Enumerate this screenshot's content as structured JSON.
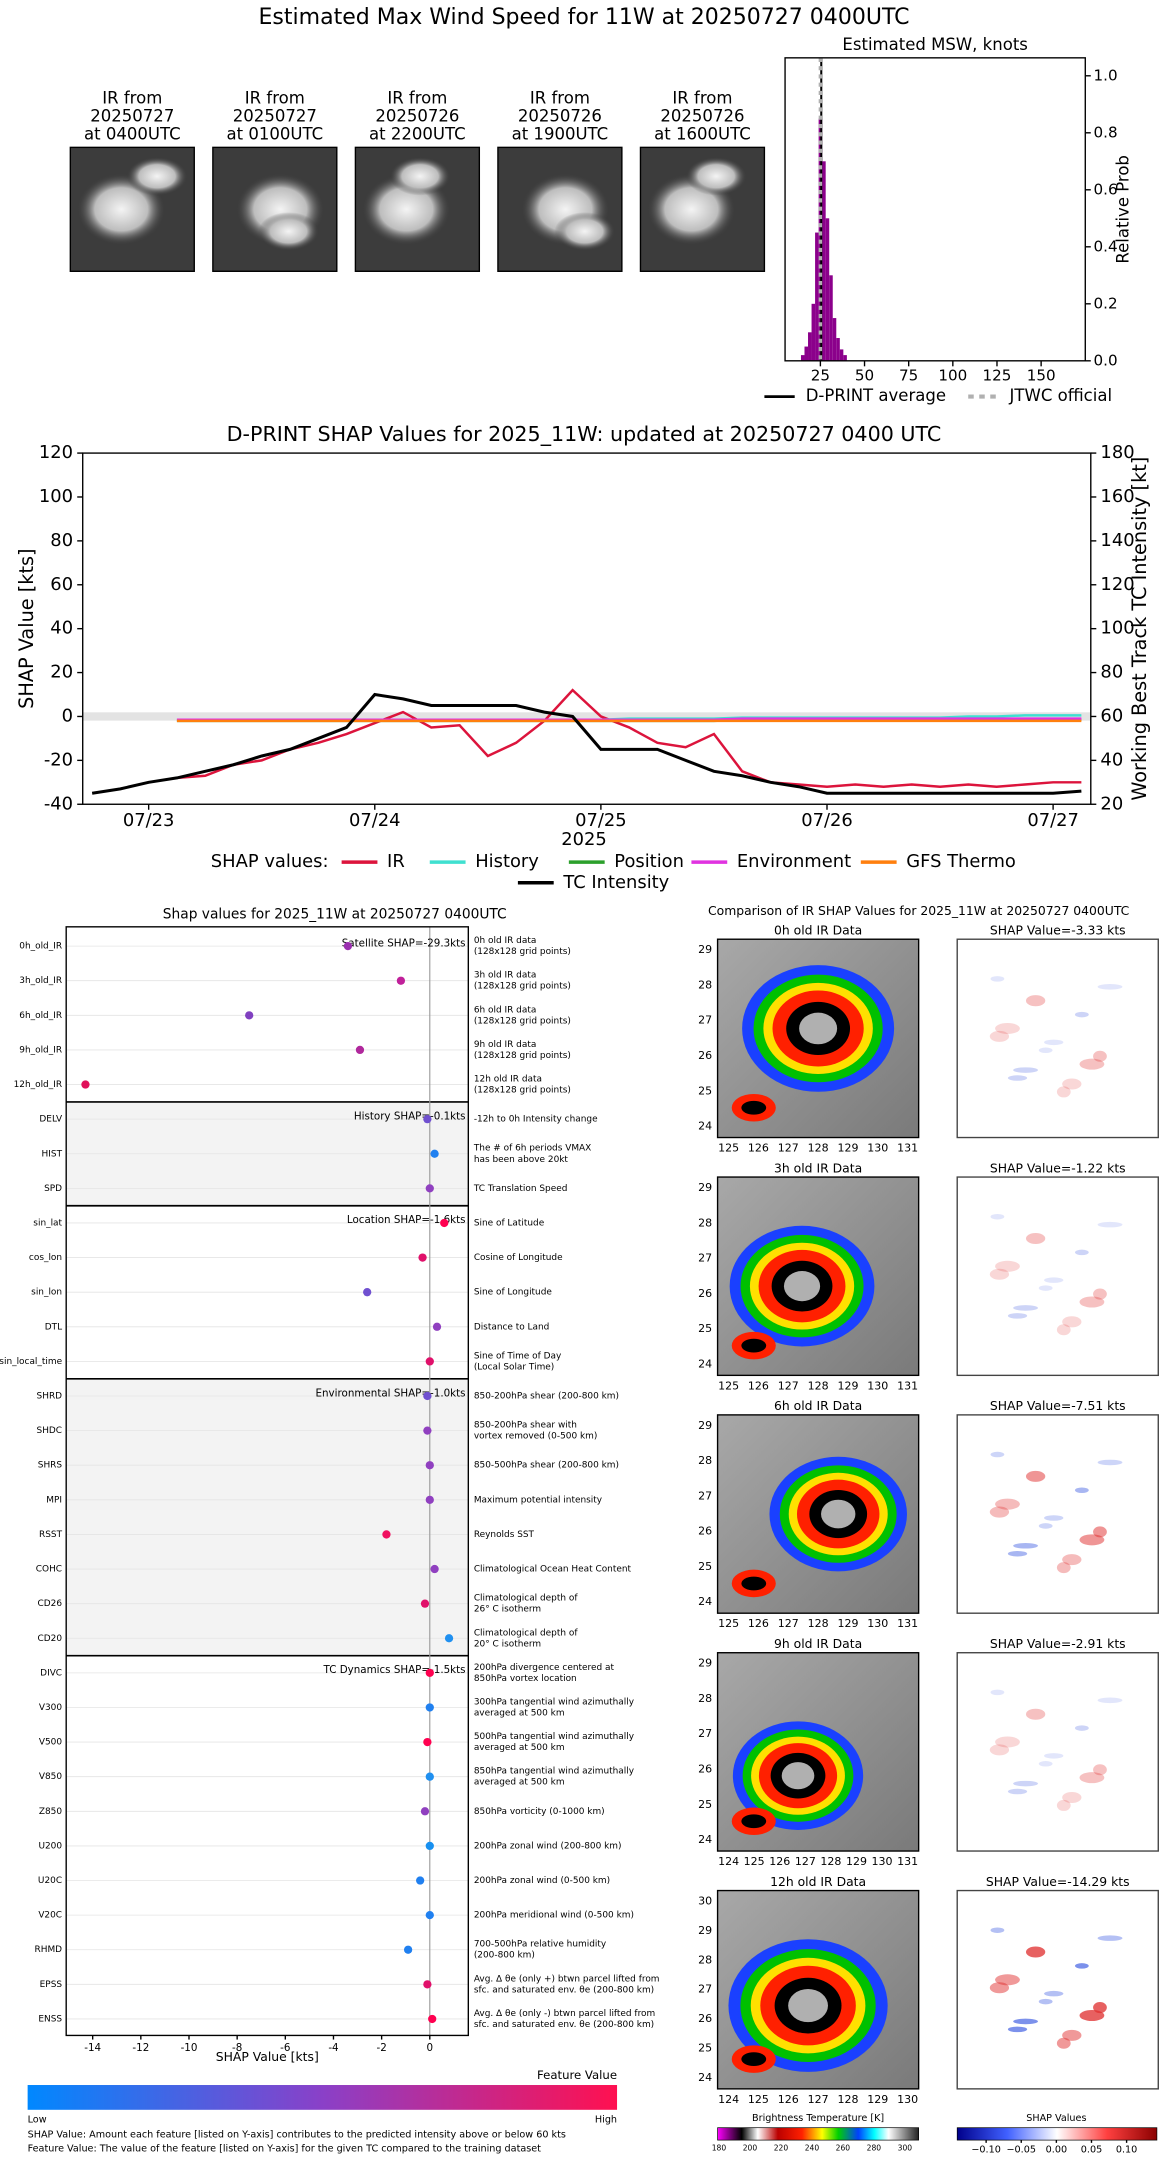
{
  "title": "Estimated Max Wind Speed for 11W at 20250727 0400UTC",
  "ir_panels": [
    {
      "lines": [
        "IR from",
        "20250727",
        "at 0400UTC"
      ]
    },
    {
      "lines": [
        "IR from",
        "20250727",
        "at 0100UTC"
      ]
    },
    {
      "lines": [
        "IR from",
        "20250726",
        "at 2200UTC"
      ]
    },
    {
      "lines": [
        "IR from",
        "20250726",
        "at 1900UTC"
      ]
    },
    {
      "lines": [
        "IR from",
        "20250726",
        "at 1600UTC"
      ]
    }
  ],
  "chart_data": [
    {
      "type": "histogram",
      "title": "Estimated MSW, knots",
      "ylabel": "Relative Prob",
      "bins": [
        14,
        16,
        18,
        20,
        22,
        24,
        26,
        28,
        30,
        32,
        34,
        36,
        38,
        40
      ],
      "values": [
        0.02,
        0.05,
        0.1,
        0.2,
        0.45,
        0.85,
        0.7,
        0.5,
        0.3,
        0.15,
        0.08,
        0.04,
        0.02
      ],
      "color": "#8b008b",
      "xlim": [
        5,
        175
      ],
      "xticks": [
        25,
        50,
        75,
        100,
        125,
        150
      ],
      "ylim": [
        0,
        1.063
      ],
      "yticks": [
        {
          "value": 0,
          "label": "0.0"
        },
        0.2,
        0.4,
        0.6,
        0.8,
        {
          "value": 1,
          "label": "1.0"
        }
      ],
      "lines": [
        {
          "name": "D-PRINT average",
          "color": "#000000",
          "value": 25.5,
          "dashed": false
        },
        {
          "name": "JTWC official",
          "color": "#b0b0b0",
          "value": 25,
          "dashed": true
        }
      ]
    },
    {
      "type": "line",
      "title": "D-PRINT SHAP Values for 2025_11W: updated at 20250727 0400 UTC",
      "xlabel": "2025",
      "ylabel": "SHAP Value [kts]",
      "y2label": "Working Best Track TC Intensity [kt]",
      "legend_title": "SHAP values:",
      "x": [
        "2025-07-22T18:00",
        "2025-07-22T21:00",
        "2025-07-23T00:00",
        "2025-07-23T03:00",
        "2025-07-23T06:00",
        "2025-07-23T09:00",
        "2025-07-23T12:00",
        "2025-07-23T15:00",
        "2025-07-23T18:00",
        "2025-07-23T21:00",
        "2025-07-24T00:00",
        "2025-07-24T03:00",
        "2025-07-24T06:00",
        "2025-07-24T09:00",
        "2025-07-24T12:00",
        "2025-07-24T15:00",
        "2025-07-24T18:00",
        "2025-07-24T21:00",
        "2025-07-25T00:00",
        "2025-07-25T03:00",
        "2025-07-25T06:00",
        "2025-07-25T09:00",
        "2025-07-25T12:00",
        "2025-07-25T15:00",
        "2025-07-25T18:00",
        "2025-07-25T21:00",
        "2025-07-26T00:00",
        "2025-07-26T03:00",
        "2025-07-26T06:00",
        "2025-07-26T09:00",
        "2025-07-26T12:00",
        "2025-07-26T15:00",
        "2025-07-26T18:00",
        "2025-07-26T21:00",
        "2025-07-27T00:00",
        "2025-07-27T03:00"
      ],
      "xlim": [
        "2025-07-22T17:00",
        "2025-07-27T04:00"
      ],
      "xticks": [
        {
          "value": "2025-07-23T00:00",
          "label": "07/23"
        },
        {
          "value": "2025-07-24T00:00",
          "label": "07/24"
        },
        {
          "value": "2025-07-25T00:00",
          "label": "07/25"
        },
        {
          "value": "2025-07-26T00:00",
          "label": "07/26"
        },
        {
          "value": "2025-07-27T00:00",
          "label": "07/27"
        }
      ],
      "ylim": [
        -40,
        120
      ],
      "yticks": [
        -40,
        -20,
        0,
        20,
        40,
        60,
        80,
        100,
        120
      ],
      "y2lim": [
        20,
        180
      ],
      "y2ticks": [
        20,
        40,
        60,
        80,
        100,
        120,
        140,
        160,
        180
      ],
      "series": [
        {
          "name": "IR",
          "color": "#dc143c",
          "values": [
            null,
            null,
            null,
            -28,
            -27,
            -22,
            -20,
            -15,
            -12,
            -8,
            -3,
            2,
            -5,
            -4,
            -18,
            -12,
            -2,
            12,
            0,
            -5,
            -12,
            -14,
            -8,
            -25,
            -30,
            -31,
            -32,
            -31,
            -32,
            -31,
            -32,
            -31,
            -32,
            -31,
            -30,
            -30
          ]
        },
        {
          "name": "History",
          "color": "#40e0d0",
          "values": [
            null,
            null,
            null,
            -1.5,
            -1.5,
            -1.5,
            -1.5,
            -1.5,
            -1.5,
            -1.5,
            -1.5,
            -1.5,
            -1.5,
            -1.5,
            -1.5,
            -1.5,
            -1.5,
            -1.5,
            -1.5,
            -1,
            -1,
            -1,
            -1,
            -0.5,
            -0.5,
            -0.5,
            -0.5,
            -0.5,
            -0.5,
            -0.5,
            -0.5,
            0,
            0,
            0.5,
            0.5,
            0.5
          ]
        },
        {
          "name": "Position",
          "color": "#2ca02c",
          "values": [
            null,
            null,
            null,
            -2,
            -2,
            -2,
            -2,
            -2,
            -2,
            -2,
            -2,
            -2,
            -2,
            -2,
            -2,
            -2,
            -2,
            -2,
            -2,
            -2,
            -2,
            -2,
            -2,
            -1.5,
            -1.5,
            -1.5,
            -1.5,
            -1.5,
            -1.5,
            -1.5,
            -1.5,
            -1.5,
            -1.5,
            -1.5,
            -1.5,
            -1.5
          ]
        },
        {
          "name": "Environment",
          "color": "#e033e0",
          "values": [
            null,
            null,
            null,
            -1.5,
            -1.5,
            -1.5,
            -1.5,
            -1.5,
            -1.5,
            -1.5,
            -1.5,
            -1.5,
            -1.5,
            -1.5,
            -1.5,
            -1.5,
            -1.5,
            -1.5,
            -1.5,
            -1.5,
            -1.5,
            -1.5,
            -1.5,
            -1,
            -1,
            -1,
            -1,
            -1,
            -1,
            -1,
            -1,
            -1,
            -1,
            -1,
            -1,
            -1
          ]
        },
        {
          "name": "GFS Thermo",
          "color": "#ff7f0e",
          "values": [
            null,
            null,
            null,
            -2,
            -2,
            -2,
            -2,
            -2,
            -2,
            -2,
            -2,
            -2,
            -2,
            -2,
            -2,
            -2,
            -2,
            -2,
            -2,
            -2,
            -2,
            -2,
            -2,
            -2,
            -2,
            -2,
            -2,
            -2,
            -2,
            -2,
            -2,
            -2,
            -2,
            -2,
            -2,
            -2
          ]
        },
        {
          "name": "TC Intensity",
          "color": "#000000",
          "axis": "y2",
          "values": [
            25,
            27,
            30,
            32,
            35,
            38,
            42,
            45,
            50,
            55,
            70,
            68,
            65,
            65,
            65,
            65,
            62,
            60,
            45,
            45,
            45,
            40,
            35,
            33,
            30,
            28,
            25,
            25,
            25,
            25,
            25,
            25,
            25,
            25,
            25,
            26
          ]
        }
      ]
    },
    {
      "type": "dot",
      "title": "Shap values for 2025_11W at 20250727 0400UTC",
      "xlabel": "SHAP Value [kts]",
      "xlim": [
        -15.1,
        1.6
      ],
      "xticks": [
        -14,
        -12,
        -10,
        -8,
        -6,
        -4,
        -2,
        0
      ],
      "groups": [
        {
          "label": "Satellite SHAP=-29.3kts",
          "shaded": false,
          "features": [
            {
              "name": "0h_old_IR",
              "description": [
                "0h old IR data",
                "(128x128 grid points)"
              ],
              "value": -3.4,
              "color": "#9b30b0"
            },
            {
              "name": "3h_old_IR",
              "description": [
                "3h old IR data",
                "(128x128 grid points)"
              ],
              "value": -1.2,
              "color": "#c0209a"
            },
            {
              "name": "6h_old_IR",
              "description": [
                "6h old IR data",
                "(128x128 grid points)"
              ],
              "value": -7.5,
              "color": "#8040c0"
            },
            {
              "name": "9h_old_IR",
              "description": [
                "9h old IR data",
                "(128x128 grid points)"
              ],
              "value": -2.9,
              "color": "#b0289c"
            },
            {
              "name": "12h_old_IR",
              "description": [
                "12h old IR data",
                "(128x128 grid points)"
              ],
              "value": -14.3,
              "color": "#e0105a"
            }
          ]
        },
        {
          "label": "History SHAP=-0.1kts",
          "shaded": true,
          "features": [
            {
              "name": "DELV",
              "description": [
                "-12h to 0h Intensity change"
              ],
              "value": -0.1,
              "color": "#7050d0"
            },
            {
              "name": "HIST",
              "description": [
                "The # of 6h periods VMAX",
                "has been above 20kt"
              ],
              "value": 0.2,
              "color": "#2080f0"
            },
            {
              "name": "SPD",
              "description": [
                "TC Translation Speed"
              ],
              "value": 0,
              "color": "#9040c0"
            }
          ]
        },
        {
          "label": "Location SHAP=-1.6kts",
          "shaded": false,
          "features": [
            {
              "name": "sin_lat",
              "description": [
                "Sine of Latitude"
              ],
              "value": 0.6,
              "color": "#ff0050"
            },
            {
              "name": "cos_lon",
              "description": [
                "Cosine of Longitude"
              ],
              "value": -0.3,
              "color": "#e0106a"
            },
            {
              "name": "sin_lon",
              "description": [
                "Sine of Longitude"
              ],
              "value": -2.6,
              "color": "#7050d0"
            },
            {
              "name": "DTL",
              "description": [
                "Distance to Land"
              ],
              "value": 0.3,
              "color": "#9040c0"
            },
            {
              "name": "sin_local_time",
              "description": [
                "Sine of Time of Day",
                "(Local Solar Time)"
              ],
              "value": 0,
              "color": "#e0106a"
            }
          ]
        },
        {
          "label": "Environmental SHAP=-1.0kts",
          "shaded": true,
          "features": [
            {
              "name": "SHRD",
              "description": [
                "850-200hPa shear (200-800 km)"
              ],
              "value": -0.1,
              "color": "#7050d0"
            },
            {
              "name": "SHDC",
              "description": [
                "850-200hPa shear with",
                "vortex removed (0-500 km)"
              ],
              "value": -0.1,
              "color": "#9040c0"
            },
            {
              "name": "SHRS",
              "description": [
                "850-500hPa shear (200-800 km)"
              ],
              "value": 0,
              "color": "#9040c0"
            },
            {
              "name": "MPI",
              "description": [
                "Maximum potential intensity"
              ],
              "value": 0,
              "color": "#9040c0"
            },
            {
              "name": "RSST",
              "description": [
                "Reynolds SST"
              ],
              "value": -1.8,
              "color": "#f01060"
            },
            {
              "name": "COHC",
              "description": [
                "Climatological Ocean Heat Content"
              ],
              "value": 0.2,
              "color": "#9040c0"
            },
            {
              "name": "CD26",
              "description": [
                "Climatological depth of",
                "26° C isotherm"
              ],
              "value": -0.2,
              "color": "#e0106a"
            },
            {
              "name": "CD20",
              "description": [
                "Climatological depth of",
                "20° C isotherm"
              ],
              "value": 0.8,
              "color": "#2090f0"
            }
          ]
        },
        {
          "label": "TC Dynamics SHAP=-1.5kts",
          "shaded": false,
          "features": [
            {
              "name": "DIVC",
              "description": [
                "200hPa divergence centered at",
                "850hPa vortex location"
              ],
              "value": 0,
              "color": "#ff0050"
            },
            {
              "name": "V300",
              "description": [
                "300hPa tangential wind azimuthally",
                "averaged at 500 km"
              ],
              "value": 0,
              "color": "#2080f0"
            },
            {
              "name": "V500",
              "description": [
                "500hPa tangential wind azimuthally",
                "averaged at 500 km"
              ],
              "value": -0.1,
              "color": "#ff0050"
            },
            {
              "name": "V850",
              "description": [
                "850hPa tangential wind azimuthally",
                "averaged at 500 km"
              ],
              "value": 0,
              "color": "#2090f0"
            },
            {
              "name": "Z850",
              "description": [
                "850hPa vorticity (0-1000 km)"
              ],
              "value": -0.2,
              "color": "#9040c0"
            },
            {
              "name": "U200",
              "description": [
                "200hPa zonal wind (200-800 km)"
              ],
              "value": 0,
              "color": "#1890f0"
            },
            {
              "name": "U20C",
              "description": [
                "200hPa zonal wind (0-500 km)"
              ],
              "value": -0.4,
              "color": "#2080f0"
            },
            {
              "name": "V20C",
              "description": [
                "200hPa meridional wind (0-500 km)"
              ],
              "value": 0,
              "color": "#2080f0"
            },
            {
              "name": "RHMD",
              "description": [
                "700-500hPa relative humidity",
                "(200-800 km)"
              ],
              "value": -0.9,
              "color": "#2080f0"
            },
            {
              "name": "EPSS",
              "description": [
                "Avg. Δ θe (only +) btwn parcel lifted from",
                "sfc. and saturated env. θe (200-800 km)"
              ],
              "value": -0.1,
              "color": "#e0106a"
            },
            {
              "name": "ENSS",
              "description": [
                "Avg. Δ θe (only -) btwn parcel lifted from",
                "sfc. and saturated env. θe (200-800 km)"
              ],
              "value": 0.1,
              "color": "#ff0050"
            }
          ]
        }
      ],
      "colorbar": {
        "label": "Feature Value",
        "low": "Low",
        "high": "High",
        "colors": [
          "#0088ff",
          "#8a40c8",
          "#ff1050"
        ]
      },
      "notes": [
        "SHAP Value: Amount each feature [listed on Y-axis] contributes to the predicted intensity above or below 60 kts",
        "Feature Value: The value of the feature [listed on Y-axis] for the given TC compared to the training dataset"
      ]
    }
  ],
  "ir_comparison": {
    "title": "Comparison of IR SHAP Values for 2025_11W at 20250727 0400UTC",
    "rows": [
      {
        "ir_title": "0h old IR Data",
        "shap_title": "SHAP Value=-3.33 kts",
        "xticks": [
          125,
          126,
          127,
          128,
          129,
          130,
          131
        ],
        "yticks": [
          24,
          25,
          26,
          27,
          28,
          29
        ]
      },
      {
        "ir_title": "3h old IR Data",
        "shap_title": "SHAP Value=-1.22 kts",
        "xticks": [
          125,
          126,
          127,
          128,
          129,
          130,
          131
        ],
        "yticks": [
          24,
          25,
          26,
          27,
          28,
          29
        ]
      },
      {
        "ir_title": "6h old IR Data",
        "shap_title": "SHAP Value=-7.51 kts",
        "xticks": [
          125,
          126,
          127,
          128,
          129,
          130,
          131
        ],
        "yticks": [
          24,
          25,
          26,
          27,
          28,
          29
        ]
      },
      {
        "ir_title": "9h old IR Data",
        "shap_title": "SHAP Value=-2.91 kts",
        "xticks": [
          124,
          125,
          126,
          127,
          128,
          129,
          130,
          131
        ],
        "yticks": [
          24,
          25,
          26,
          27,
          28,
          29
        ]
      },
      {
        "ir_title": "12h old IR Data",
        "shap_title": "SHAP Value=-14.29 kts",
        "xticks": [
          124,
          125,
          126,
          127,
          128,
          129,
          130
        ],
        "yticks": [
          24,
          25,
          26,
          27,
          28,
          29,
          30
        ]
      }
    ],
    "brightness_colorbar": {
      "label": "Brightness Temperature [K]",
      "ticks": [
        180,
        200,
        220,
        240,
        260,
        280,
        300
      ]
    },
    "shap_colorbar": {
      "label": "SHAP Values",
      "ticks": [
        {
          "value": -0.1,
          "label": "−0.10"
        },
        {
          "value": -0.05,
          "label": "−0.05"
        },
        {
          "value": 0,
          "label": "0.00"
        },
        {
          "value": 0.05,
          "label": "0.05"
        },
        {
          "value": 0.1,
          "label": "0.10"
        }
      ]
    }
  }
}
